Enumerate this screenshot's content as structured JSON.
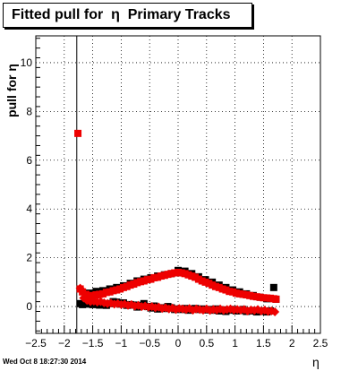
{
  "chart_data": {
    "type": "scatter",
    "title": "Fitted pull for  η  Primary Tracks",
    "xlabel": "η",
    "ylabel": "pull for η",
    "xlim": [
      -2.5,
      2.5
    ],
    "ylim": [
      -1.1,
      11.1
    ],
    "x_ticks": [
      -2.5,
      -2,
      -1.5,
      -1,
      -0.5,
      0,
      0.5,
      1,
      1.5,
      2,
      2.5
    ],
    "x_tick_labels": [
      "−2.5",
      "−2",
      "−1.5",
      "−1",
      "−0.5",
      "0",
      "0.5",
      "1",
      "1.5",
      "2",
      "2.5"
    ],
    "y_ticks": [
      0,
      2,
      4,
      6,
      8,
      10
    ],
    "y_tick_labels": [
      "0",
      "2",
      "4",
      "6",
      "8",
      "10"
    ],
    "grid": true,
    "vertical_line_x": -1.78,
    "series": [
      {
        "marker": "square",
        "color": "#000000",
        "x": [
          -1.72,
          -1.68,
          -1.62,
          -1.56,
          -1.5,
          -1.44,
          -1.38,
          -1.32,
          -1.26,
          -1.2,
          -1.14,
          -1.08,
          -1.02,
          -0.96,
          -0.9,
          -0.84,
          -0.78,
          -0.72,
          -0.66,
          -0.6,
          -0.54,
          -0.48,
          -0.42,
          -0.36,
          -0.3,
          -0.24,
          -0.18,
          -0.12,
          -0.06,
          0.0,
          0.06,
          0.12,
          0.18,
          0.24,
          0.3,
          0.36,
          0.42,
          0.48,
          0.54,
          0.6,
          0.66,
          0.72,
          0.78,
          0.84,
          0.9,
          0.96,
          1.02,
          1.08,
          1.14,
          1.2,
          1.26,
          1.32,
          1.38,
          1.44,
          1.5,
          1.56,
          1.62,
          1.68,
          1.72
        ],
        "y": [
          0.12,
          0.08,
          0.1,
          0.15,
          0.08,
          0.12,
          0.06,
          0.1,
          0.05,
          0.12,
          0.2,
          0.18,
          0.1,
          0.15,
          0.05,
          0.08,
          0.06,
          -0.02,
          0.05,
          0.12,
          0.0,
          -0.06,
          0.02,
          -0.1,
          -0.05,
          -0.08,
          0.0,
          -0.05,
          -0.12,
          -0.1,
          -0.12,
          -0.08,
          -0.15,
          -0.1,
          -0.08,
          -0.12,
          -0.1,
          -0.14,
          -0.12,
          -0.15,
          -0.1,
          -0.18,
          -0.14,
          -0.2,
          -0.15,
          -0.12,
          -0.18,
          -0.16,
          -0.12,
          -0.2,
          -0.18,
          -0.16,
          -0.22,
          -0.18,
          -0.2,
          -0.22,
          -0.18,
          0.78,
          0.3
        ]
      },
      {
        "marker": "square",
        "color": "#000000",
        "x": [
          -1.56,
          -1.44,
          -1.32,
          -1.2,
          -1.08,
          -0.96,
          -0.84,
          -0.72,
          -0.6,
          -0.48,
          -0.36,
          -0.24,
          -0.12,
          0.0,
          0.12,
          0.24,
          0.36,
          0.48,
          0.6,
          0.72,
          0.84,
          0.96,
          1.08,
          1.2,
          1.32,
          1.44,
          1.56
        ],
        "y": [
          0.55,
          0.62,
          0.65,
          0.72,
          0.78,
          0.85,
          0.95,
          1.05,
          1.12,
          1.18,
          1.25,
          1.3,
          1.35,
          1.48,
          1.45,
          1.35,
          1.22,
          1.1,
          1.0,
          0.88,
          0.78,
          0.68,
          0.6,
          0.52,
          0.45,
          0.38,
          0.32
        ]
      },
      {
        "marker": "square",
        "color": "#ee0000",
        "x": [
          -1.76,
          -1.72,
          -1.68,
          -1.62,
          -1.56,
          -1.5,
          -1.44,
          -1.38,
          -1.32,
          -1.26,
          -1.2,
          -1.14,
          -1.08,
          -1.02,
          -0.96,
          -0.9,
          -0.84,
          -0.78,
          -0.72,
          -0.66,
          -0.6,
          -0.54,
          -0.48,
          -0.42,
          -0.36,
          -0.3,
          -0.24,
          -0.18,
          -0.12,
          -0.06,
          0.0,
          0.06,
          0.12,
          0.18,
          0.24,
          0.3,
          0.36,
          0.42,
          0.48,
          0.54,
          0.6,
          0.66,
          0.72,
          0.78,
          0.84,
          0.9,
          0.96,
          1.02,
          1.08,
          1.14,
          1.2,
          1.26,
          1.32,
          1.38,
          1.44,
          1.5,
          1.56,
          1.62,
          1.68,
          1.72
        ],
        "y": [
          7.1,
          0.72,
          0.6,
          0.5,
          0.45,
          0.42,
          0.48,
          0.5,
          0.52,
          0.58,
          0.6,
          0.65,
          0.68,
          0.72,
          0.78,
          0.82,
          0.88,
          0.92,
          0.98,
          1.02,
          1.05,
          1.1,
          1.12,
          1.18,
          1.2,
          1.25,
          1.28,
          1.32,
          1.35,
          1.38,
          1.4,
          1.38,
          1.35,
          1.3,
          1.25,
          1.2,
          1.12,
          1.05,
          1.0,
          0.95,
          0.88,
          0.82,
          0.78,
          0.72,
          0.68,
          0.62,
          0.6,
          0.55,
          0.52,
          0.5,
          0.48,
          0.45,
          0.42,
          0.4,
          0.38,
          0.36,
          0.35,
          0.34,
          0.32,
          0.3
        ]
      },
      {
        "marker": "diamond",
        "color": "#ee0000",
        "x": [
          -1.72,
          -1.66,
          -1.6,
          -1.54,
          -1.48,
          -1.42,
          -1.36,
          -1.3,
          -1.24,
          -1.18,
          -1.12,
          -1.06,
          -1.0,
          -0.94,
          -0.88,
          -0.82,
          -0.76,
          -0.7,
          -0.64,
          -0.58,
          -0.52,
          -0.46,
          -0.4,
          -0.34,
          -0.28,
          -0.22,
          -0.16,
          -0.1,
          -0.04,
          0.02,
          0.08,
          0.14,
          0.2,
          0.26,
          0.32,
          0.38,
          0.44,
          0.5,
          0.56,
          0.62,
          0.68,
          0.74,
          0.8,
          0.86,
          0.92,
          0.98,
          1.04,
          1.1,
          1.16,
          1.22,
          1.28,
          1.34,
          1.4,
          1.46,
          1.52,
          1.58,
          1.64,
          1.7
        ],
        "y": [
          0.75,
          0.35,
          0.25,
          0.2,
          0.22,
          0.18,
          0.2,
          0.15,
          0.12,
          0.14,
          0.1,
          0.12,
          0.08,
          0.1,
          0.05,
          0.08,
          0.02,
          0.05,
          0.0,
          0.02,
          -0.02,
          0.0,
          -0.05,
          -0.02,
          -0.08,
          -0.05,
          -0.1,
          -0.06,
          -0.12,
          -0.08,
          -0.1,
          -0.12,
          -0.08,
          -0.15,
          -0.1,
          -0.12,
          -0.15,
          -0.1,
          -0.16,
          -0.12,
          -0.14,
          -0.1,
          -0.15,
          -0.12,
          -0.1,
          -0.14,
          -0.12,
          -0.15,
          -0.12,
          -0.18,
          -0.14,
          -0.16,
          -0.12,
          -0.18,
          -0.15,
          -0.2,
          -0.18,
          -0.22
        ]
      }
    ]
  },
  "footer": {
    "timestamp": "Wed Oct  8 18:27:30 2014"
  }
}
